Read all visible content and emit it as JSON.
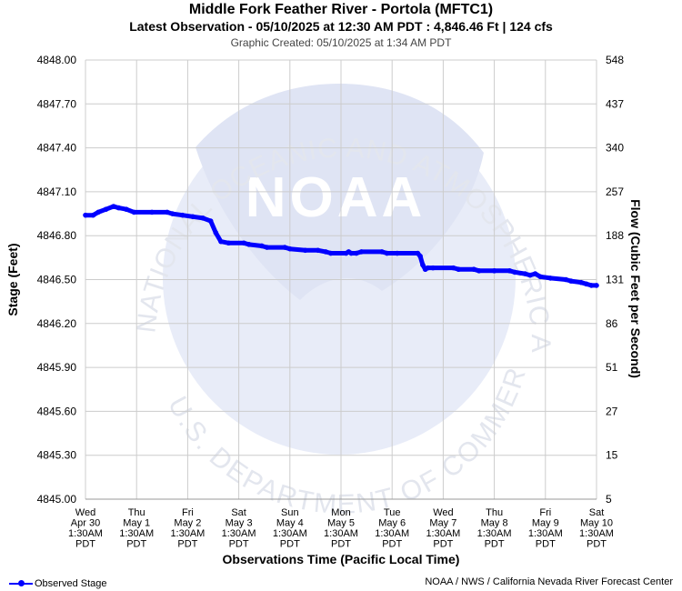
{
  "header": {
    "title": "Middle Fork Feather River - Portola (MFTC1)",
    "subtitle": "Latest Observation - 05/10/2025 at 12:30 AM PDT : 4,846.46 Ft | 124 cfs",
    "created": "Graphic Created: 05/10/2025 at 1:34 AM PDT"
  },
  "watermark": {
    "logo_text": "NOAA",
    "top_text": "NATIONAL OCEANIC AND ATMOSPHERIC ADMINISTRATION",
    "bottom_text": "U.S. DEPARTMENT OF COMMERCE"
  },
  "footer": {
    "legend_label": "Observed Stage",
    "credit": "NOAA / NWS / California Nevada River Forecast Center"
  },
  "colors": {
    "series": "#0000ff",
    "grid": "#cccccc",
    "watermark": "#e8ecf8"
  },
  "chart_data": {
    "type": "line",
    "xlabel": "Observations Time (Pacific Local Time)",
    "ylabel": "Stage (Feet)",
    "y2label": "Flow (Cubic Feet per Second)",
    "ylim": [
      4845.0,
      4848.0
    ],
    "xlim": [
      0,
      10
    ],
    "grid": true,
    "legend_position": "bottom-left",
    "x_ticks": [
      {
        "day": "Wed",
        "date": "Apr 30",
        "time": "1:30AM",
        "tz": "PDT"
      },
      {
        "day": "Thu",
        "date": "May 1",
        "time": "1:30AM",
        "tz": "PDT"
      },
      {
        "day": "Fri",
        "date": "May 2",
        "time": "1:30AM",
        "tz": "PDT"
      },
      {
        "day": "Sat",
        "date": "May 3",
        "time": "1:30AM",
        "tz": "PDT"
      },
      {
        "day": "Sun",
        "date": "May 4",
        "time": "1:30AM",
        "tz": "PDT"
      },
      {
        "day": "Mon",
        "date": "May 5",
        "time": "1:30AM",
        "tz": "PDT"
      },
      {
        "day": "Tue",
        "date": "May 6",
        "time": "1:30AM",
        "tz": "PDT"
      },
      {
        "day": "Wed",
        "date": "May 7",
        "time": "1:30AM",
        "tz": "PDT"
      },
      {
        "day": "Thu",
        "date": "May 8",
        "time": "1:30AM",
        "tz": "PDT"
      },
      {
        "day": "Fri",
        "date": "May 9",
        "time": "1:30AM",
        "tz": "PDT"
      },
      {
        "day": "Sat",
        "date": "May 10",
        "time": "1:30AM",
        "tz": "PDT"
      }
    ],
    "y_ticks": [
      "4845.00",
      "4845.30",
      "4845.60",
      "4845.90",
      "4846.20",
      "4846.50",
      "4846.80",
      "4847.10",
      "4847.40",
      "4847.70",
      "4848.00"
    ],
    "y2_ticks": [
      "5",
      "15",
      "27",
      "51",
      "86",
      "131",
      "188",
      "257",
      "340",
      "437",
      "548"
    ],
    "series": [
      {
        "name": "Observed Stage",
        "points": [
          [
            0.0,
            4846.94
          ],
          [
            0.15,
            4846.94
          ],
          [
            0.25,
            4846.96
          ],
          [
            0.4,
            4846.98
          ],
          [
            0.55,
            4847.0
          ],
          [
            0.65,
            4846.99
          ],
          [
            0.8,
            4846.98
          ],
          [
            0.95,
            4846.96
          ],
          [
            1.3,
            4846.96
          ],
          [
            1.6,
            4846.96
          ],
          [
            1.7,
            4846.95
          ],
          [
            1.9,
            4846.94
          ],
          [
            2.1,
            4846.93
          ],
          [
            2.3,
            4846.92
          ],
          [
            2.45,
            4846.9
          ],
          [
            2.55,
            4846.82
          ],
          [
            2.65,
            4846.76
          ],
          [
            2.8,
            4846.75
          ],
          [
            3.1,
            4846.75
          ],
          [
            3.2,
            4846.74
          ],
          [
            3.45,
            4846.73
          ],
          [
            3.55,
            4846.72
          ],
          [
            3.9,
            4846.72
          ],
          [
            4.0,
            4846.71
          ],
          [
            4.3,
            4846.7
          ],
          [
            4.55,
            4846.7
          ],
          [
            4.7,
            4846.69
          ],
          [
            4.8,
            4846.68
          ],
          [
            5.1,
            4846.68
          ],
          [
            5.15,
            4846.69
          ],
          [
            5.2,
            4846.68
          ],
          [
            5.3,
            4846.68
          ],
          [
            5.4,
            4846.69
          ],
          [
            5.8,
            4846.69
          ],
          [
            5.9,
            4846.68
          ],
          [
            6.1,
            4846.68
          ],
          [
            6.5,
            4846.68
          ],
          [
            6.55,
            4846.66
          ],
          [
            6.6,
            4846.6
          ],
          [
            6.65,
            4846.57
          ],
          [
            6.7,
            4846.58
          ],
          [
            6.8,
            4846.58
          ],
          [
            7.2,
            4846.58
          ],
          [
            7.3,
            4846.57
          ],
          [
            7.6,
            4846.57
          ],
          [
            7.7,
            4846.56
          ],
          [
            8.0,
            4846.56
          ],
          [
            8.3,
            4846.56
          ],
          [
            8.4,
            4846.55
          ],
          [
            8.6,
            4846.54
          ],
          [
            8.7,
            4846.53
          ],
          [
            8.8,
            4846.54
          ],
          [
            8.9,
            4846.52
          ],
          [
            9.1,
            4846.51
          ],
          [
            9.4,
            4846.5
          ],
          [
            9.5,
            4846.49
          ],
          [
            9.7,
            4846.48
          ],
          [
            9.8,
            4846.47
          ],
          [
            9.9,
            4846.46
          ],
          [
            10.0,
            4846.46
          ]
        ]
      }
    ]
  }
}
